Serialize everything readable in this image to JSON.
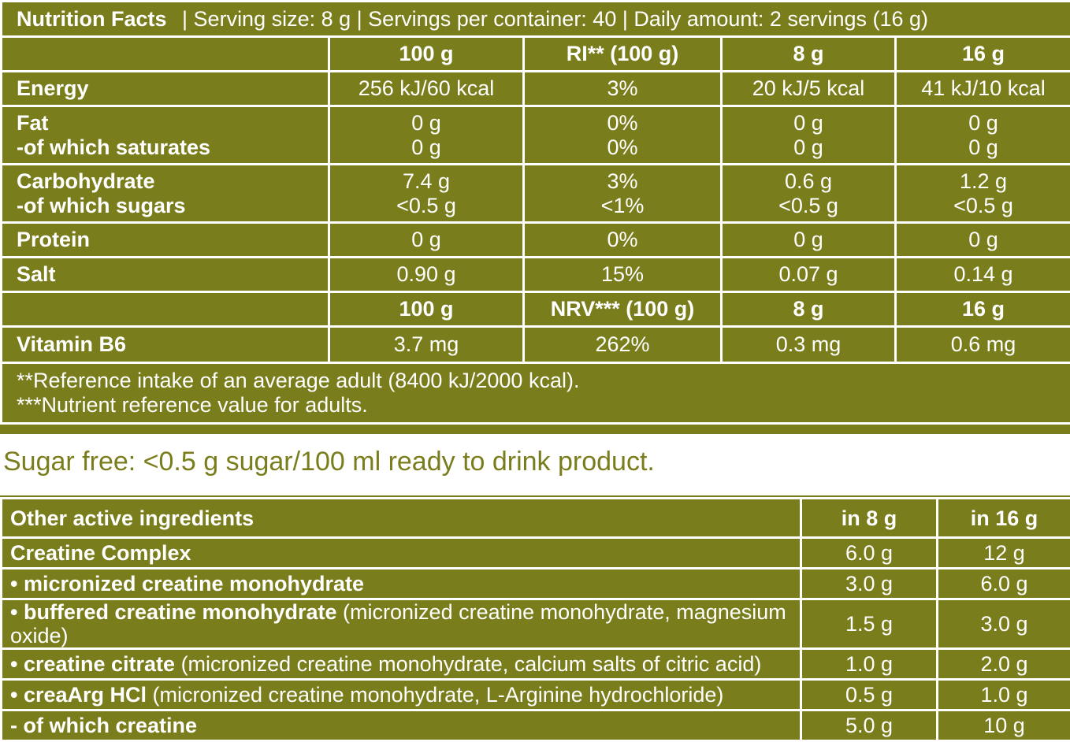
{
  "header": {
    "title": "Nutrition Facts",
    "serving_info": "| Serving size: 8 g | Servings per container: 40 | Daily amount: 2 servings (16 g)"
  },
  "nutrition": {
    "columns": [
      "100 g",
      "RI** (100 g)",
      "8 g",
      "16 g"
    ],
    "rows": [
      {
        "label": "Energy",
        "sub": "",
        "v1": "256 kJ/60 kcal",
        "v1b": "",
        "v2": "3%",
        "v2b": "",
        "v3": "20 kJ/5 kcal",
        "v3b": "",
        "v4": "41 kJ/10 kcal",
        "v4b": ""
      },
      {
        "label": "Fat",
        "sub": "-of which saturates",
        "v1": "0 g",
        "v1b": "0 g",
        "v2": "0%",
        "v2b": "0%",
        "v3": "0 g",
        "v3b": "0 g",
        "v4": "0 g",
        "v4b": "0 g"
      },
      {
        "label": "Carbohydrate",
        "sub": "-of which sugars",
        "v1": "7.4 g",
        "v1b": "<0.5 g",
        "v2": "3%",
        "v2b": "<1%",
        "v3": "0.6 g",
        "v3b": "<0.5 g",
        "v4": "1.2 g",
        "v4b": "<0.5 g"
      },
      {
        "label": "Protein",
        "sub": "",
        "v1": "0 g",
        "v1b": "",
        "v2": "0%",
        "v2b": "",
        "v3": "0 g",
        "v3b": "",
        "v4": "0 g",
        "v4b": ""
      },
      {
        "label": "Salt",
        "sub": "",
        "v1": "0.90 g",
        "v1b": "",
        "v2": "15%",
        "v2b": "",
        "v3": "0.07 g",
        "v3b": "",
        "v4": "0.14 g",
        "v4b": ""
      }
    ],
    "columns2": [
      "100 g",
      "NRV*** (100 g)",
      "8 g",
      "16 g"
    ],
    "vitamin": {
      "label": "Vitamin B6",
      "v1": "3.7 mg",
      "v2": "262%",
      "v3": "0.3 mg",
      "v4": "0.6 mg"
    },
    "footnote1": "**Reference intake of an average adult (8400 kJ/2000 kcal).",
    "footnote2": "***Nutrient reference value for adults."
  },
  "sugar_note": "Sugar free: <0.5 g sugar/100 ml ready to drink product.",
  "ingredients": {
    "header": {
      "label": "Other active ingredients",
      "c1": "in 8 g",
      "c2": "in 16 g"
    },
    "rows": [
      {
        "name": "Creatine Complex",
        "detail": "",
        "c1": "6.0 g",
        "c2": "12 g"
      },
      {
        "name": "• micronized creatine monohydrate",
        "detail": "",
        "c1": "3.0 g",
        "c2": "6.0 g"
      },
      {
        "name": "• buffered creatine monohydrate",
        "detail": " (micronized creatine monohydrate, magnesium oxide)",
        "c1": "1.5 g",
        "c2": "3.0 g"
      },
      {
        "name": "• creatine citrate",
        "detail": " (micronized creatine monohydrate, calcium salts of citric acid)",
        "c1": "1.0 g",
        "c2": "2.0 g"
      },
      {
        "name": "• creaArg HCl",
        "detail": " (micronized creatine monohydrate, L-Arginine hydrochloride)",
        "c1": "0.5 g",
        "c2": "1.0 g"
      },
      {
        "name": "- of which creatine",
        "detail": "",
        "c1": "5.0 g",
        "c2": "10 g"
      }
    ]
  },
  "colors": {
    "olive": "#7a7d1c",
    "white": "#ffffff"
  }
}
